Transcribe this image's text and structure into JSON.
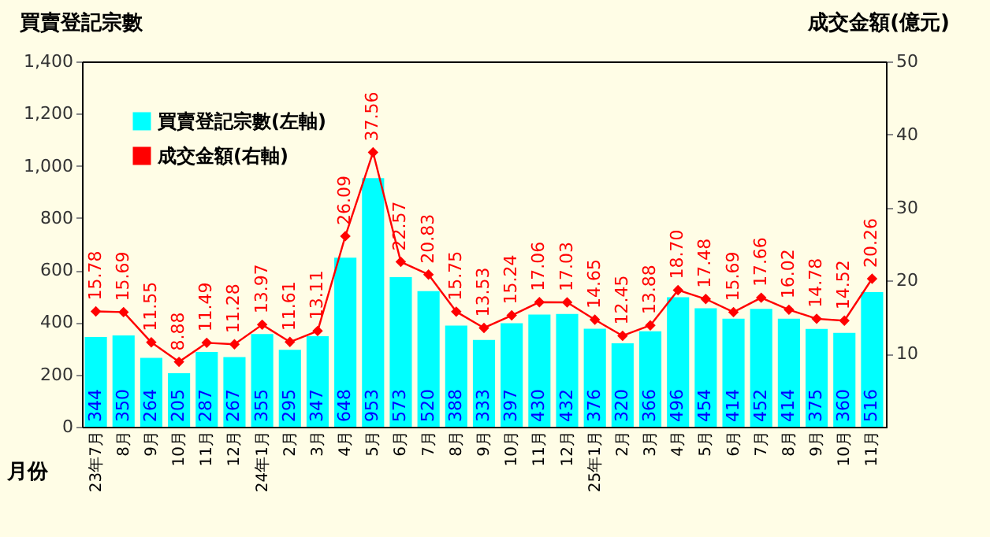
{
  "chart_data": {
    "type": "bar",
    "xlabel": "月份",
    "ylabel": "買賣登記宗數",
    "y2label": "成交金額(億元)",
    "categories": [
      "23年7月",
      "8月",
      "9月",
      "10月",
      "11月",
      "12月",
      "24年1月",
      "2月",
      "3月",
      "4月",
      "5月",
      "6月",
      "7月",
      "8月",
      "9月",
      "10月",
      "11月",
      "12月",
      "25年1月",
      "2月",
      "3月",
      "4月",
      "5月",
      "6月",
      "7月",
      "8月",
      "9月",
      "10月",
      "11月"
    ],
    "series": [
      {
        "name": "買賣登記宗數(左軸)",
        "color": "#00ffff",
        "values": [
          344,
          350,
          264,
          205,
          287,
          267,
          355,
          295,
          347,
          648,
          953,
          573,
          520,
          388,
          333,
          397,
          430,
          432,
          376,
          320,
          366,
          496,
          454,
          414,
          452,
          414,
          375,
          360,
          516
        ],
        "value_labels": [
          "344",
          "350",
          "264",
          "205",
          "287",
          "267",
          "355",
          "295",
          "347",
          "648",
          "953",
          "573",
          "520",
          "388",
          "333",
          "397",
          "430",
          "432",
          "376",
          "320",
          "366",
          "496",
          "454",
          "414",
          "452",
          "414",
          "375",
          "360",
          "516"
        ]
      },
      {
        "name": "成交金額(右軸)",
        "type": "line",
        "axis": "y2",
        "color": "#ff0000",
        "marker": "diamond",
        "values": [
          15.78,
          15.69,
          11.55,
          8.88,
          11.49,
          11.28,
          13.97,
          11.61,
          13.11,
          26.09,
          37.56,
          22.57,
          20.83,
          15.75,
          13.53,
          15.24,
          17.06,
          17.03,
          14.65,
          12.45,
          13.88,
          18.7,
          17.48,
          15.69,
          17.66,
          16.02,
          14.78,
          14.52,
          20.26
        ],
        "value_labels": [
          "15.78",
          "15.69",
          "11.55",
          "8.88",
          "11.49",
          "11.28",
          "13.97",
          "11.61",
          "13.11",
          "26.09",
          "37.56",
          "22.57",
          "20.83",
          "15.75",
          "13.53",
          "15.24",
          "17.06",
          "17.03",
          "14.65",
          "12.45",
          "13.88",
          "18.70",
          "17.48",
          "15.69",
          "17.66",
          "16.02",
          "14.78",
          "14.52",
          "20.26"
        ]
      }
    ],
    "ylim": [
      0,
      1400
    ],
    "yticks": [
      0,
      200,
      400,
      600,
      800,
      {
        "value": 1000,
        "label": "1,000"
      },
      {
        "value": 1200,
        "label": "1,200"
      },
      {
        "value": 1400,
        "label": "1,400"
      }
    ],
    "y2lim": [
      0,
      50
    ],
    "y2ticks": [
      10,
      20,
      30,
      40,
      50
    ],
    "legend": "top left"
  }
}
